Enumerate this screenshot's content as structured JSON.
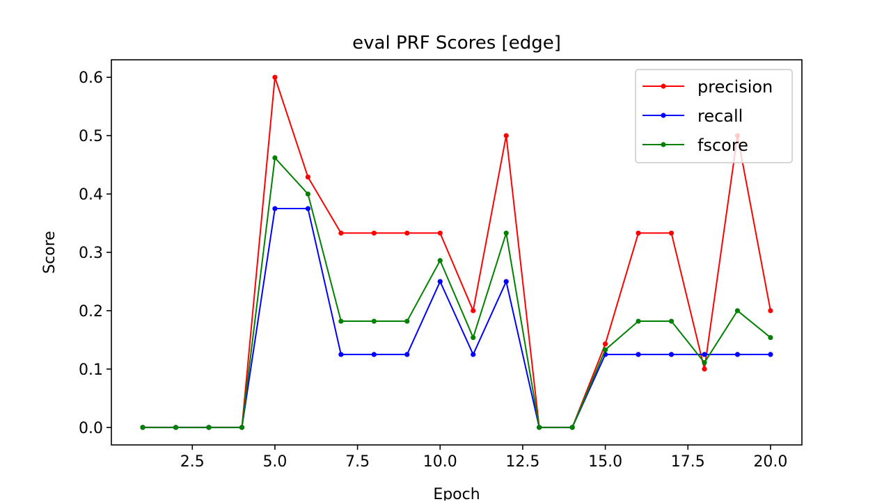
{
  "chart_data": {
    "type": "line",
    "title": "eval PRF Scores [edge]",
    "xlabel": "Epoch",
    "ylabel": "Score",
    "xlim": [
      0.05,
      20.95
    ],
    "ylim": [
      -0.03,
      0.63
    ],
    "xticks": [
      2.5,
      5.0,
      7.5,
      10.0,
      12.5,
      15.0,
      17.5,
      20.0
    ],
    "xtick_labels": [
      "2.5",
      "5.0",
      "7.5",
      "10.0",
      "12.5",
      "15.0",
      "17.5",
      "20.0"
    ],
    "yticks": [
      0.0,
      0.1,
      0.2,
      0.3,
      0.4,
      0.5,
      0.6
    ],
    "ytick_labels": [
      "0.0",
      "0.1",
      "0.2",
      "0.3",
      "0.4",
      "0.5",
      "0.6"
    ],
    "grid": false,
    "legend_position": "top-right",
    "x": [
      1,
      2,
      3,
      4,
      5,
      6,
      7,
      8,
      9,
      10,
      11,
      12,
      13,
      14,
      15,
      16,
      17,
      18,
      19,
      20
    ],
    "series": [
      {
        "name": "precision",
        "color": "#ff0000",
        "values": [
          0,
          0,
          0,
          0,
          0.6,
          0.429,
          0.333,
          0.333,
          0.333,
          0.333,
          0.2,
          0.5,
          0,
          0,
          0.143,
          0.333,
          0.333,
          0.1,
          0.5,
          0.2
        ]
      },
      {
        "name": "recall",
        "color": "#0000ff",
        "values": [
          0,
          0,
          0,
          0,
          0.375,
          0.375,
          0.125,
          0.125,
          0.125,
          0.25,
          0.125,
          0.25,
          0,
          0,
          0.125,
          0.125,
          0.125,
          0.125,
          0.125,
          0.125
        ]
      },
      {
        "name": "fscore",
        "color": "#008000",
        "values": [
          0,
          0,
          0,
          0,
          0.462,
          0.4,
          0.182,
          0.182,
          0.182,
          0.286,
          0.154,
          0.333,
          0,
          0,
          0.133,
          0.182,
          0.182,
          0.111,
          0.2,
          0.154
        ]
      }
    ]
  }
}
